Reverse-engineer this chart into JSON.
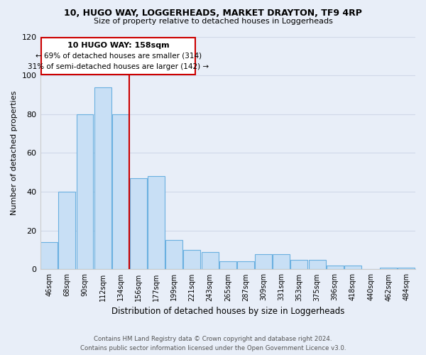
{
  "title": "10, HUGO WAY, LOGGERHEADS, MARKET DRAYTON, TF9 4RP",
  "subtitle": "Size of property relative to detached houses in Loggerheads",
  "xlabel": "Distribution of detached houses by size in Loggerheads",
  "ylabel": "Number of detached properties",
  "bar_labels": [
    "46sqm",
    "68sqm",
    "90sqm",
    "112sqm",
    "134sqm",
    "156sqm",
    "177sqm",
    "199sqm",
    "221sqm",
    "243sqm",
    "265sqm",
    "287sqm",
    "309sqm",
    "331sqm",
    "353sqm",
    "375sqm",
    "396sqm",
    "418sqm",
    "440sqm",
    "462sqm",
    "484sqm"
  ],
  "bar_values": [
    14,
    40,
    80,
    94,
    80,
    47,
    48,
    15,
    10,
    9,
    4,
    4,
    8,
    8,
    5,
    5,
    2,
    2,
    0,
    1,
    1
  ],
  "bar_color": "#c8dff5",
  "bar_edge_color": "#6ab0e0",
  "vline_color": "#cc0000",
  "ylim": [
    0,
    120
  ],
  "yticks": [
    0,
    20,
    40,
    60,
    80,
    100,
    120
  ],
  "annotation_title": "10 HUGO WAY: 158sqm",
  "annotation_line1": "← 69% of detached houses are smaller (314)",
  "annotation_line2": "31% of semi-detached houses are larger (142) →",
  "annotation_box_color": "#ffffff",
  "annotation_box_edge": "#cc0000",
  "footer1": "Contains HM Land Registry data © Crown copyright and database right 2024.",
  "footer2": "Contains public sector information licensed under the Open Government Licence v3.0.",
  "bg_color": "#e8eef8",
  "grid_color": "#d0d8e8"
}
